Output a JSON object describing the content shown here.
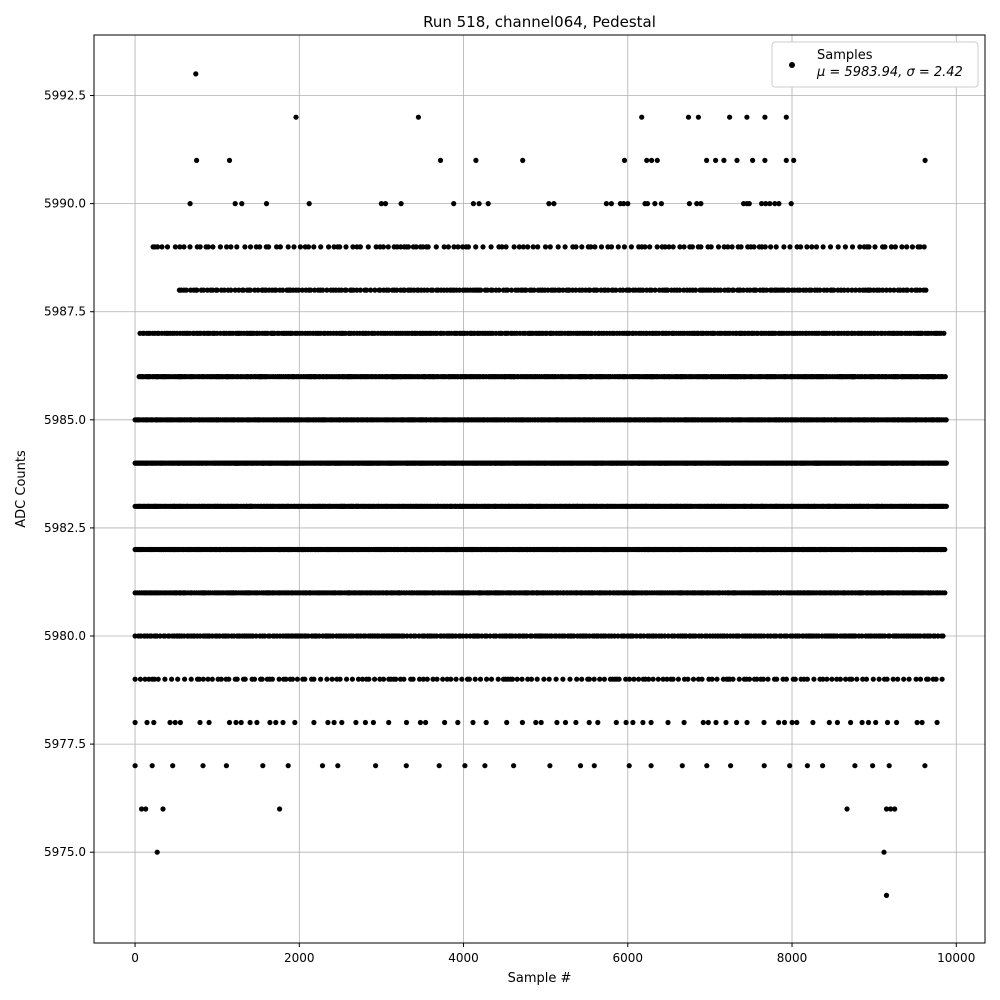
{
  "chart_data": {
    "type": "scatter",
    "title": "Run 518, channel064, Pedestal",
    "xlabel": "Sample #",
    "ylabel": "ADC Counts",
    "xlim": [
      -500,
      10350
    ],
    "ylim": [
      5972.9,
      5993.9
    ],
    "xticks": [
      0,
      2000,
      4000,
      6000,
      8000,
      10000
    ],
    "xtick_labels": [
      "0",
      "2000",
      "4000",
      "6000",
      "8000",
      "10000"
    ],
    "yticks": [
      5975.0,
      5977.5,
      5980.0,
      5982.5,
      5985.0,
      5987.5,
      5990.0,
      5992.5
    ],
    "ytick_labels": [
      "5975.0",
      "5977.5",
      "5980.0",
      "5982.5",
      "5985.0",
      "5987.5",
      "5990.0",
      "5992.5"
    ],
    "grid": true,
    "legend": {
      "position": "top-right",
      "label": "Samples",
      "stats_label": "μ = 5983.94, σ = 2.42"
    },
    "marker_color": "#000000",
    "series": [
      {
        "name": "Samples",
        "points": [
          [
            740,
            5993
          ],
          [
            1960,
            5992
          ],
          [
            3450,
            5992
          ],
          [
            6170,
            5992
          ],
          [
            6740,
            5992
          ],
          [
            6860,
            5992
          ],
          [
            7240,
            5992
          ],
          [
            7450,
            5992
          ],
          [
            7670,
            5992
          ],
          [
            7930,
            5992
          ],
          [
            750,
            5991
          ],
          [
            1150,
            5991
          ],
          [
            3720,
            5991
          ],
          [
            4150,
            5991
          ],
          [
            4720,
            5991
          ],
          [
            5960,
            5991
          ],
          [
            6230,
            5991
          ],
          [
            6290,
            5991
          ],
          [
            6360,
            5991
          ],
          [
            6960,
            5991
          ],
          [
            7070,
            5991
          ],
          [
            7170,
            5991
          ],
          [
            7330,
            5991
          ],
          [
            7520,
            5991
          ],
          [
            7670,
            5991
          ],
          [
            7930,
            5991
          ],
          [
            8020,
            5991
          ],
          [
            9620,
            5991
          ],
          [
            670,
            5990
          ],
          [
            1220,
            5990
          ],
          [
            1300,
            5990
          ],
          [
            1600,
            5990
          ],
          [
            2120,
            5990
          ],
          [
            3000,
            5990
          ],
          [
            3050,
            5990
          ],
          [
            3240,
            5990
          ],
          [
            3880,
            5990
          ],
          [
            4120,
            5990
          ],
          [
            4190,
            5990
          ],
          [
            4300,
            5990
          ],
          [
            5040,
            5990
          ],
          [
            5100,
            5990
          ],
          [
            5740,
            5990
          ],
          [
            5800,
            5990
          ],
          [
            5910,
            5990
          ],
          [
            5950,
            5990
          ],
          [
            6000,
            5990
          ],
          [
            6210,
            5990
          ],
          [
            6240,
            5990
          ],
          [
            6330,
            5990
          ],
          [
            6410,
            5990
          ],
          [
            6750,
            5990
          ],
          [
            6840,
            5990
          ],
          [
            6890,
            5990
          ],
          [
            7410,
            5990
          ],
          [
            7450,
            5990
          ],
          [
            7480,
            5990
          ],
          [
            7630,
            5990
          ],
          [
            7680,
            5990
          ],
          [
            7730,
            5990
          ],
          [
            7790,
            5990
          ],
          [
            7840,
            5990
          ],
          [
            7990,
            5990
          ]
        ],
        "bands": [
          {
            "y": 5989,
            "x_start": 220,
            "x_end": 9650,
            "step": 55
          },
          {
            "y": 5988,
            "x_start": 540,
            "x_end": 9640,
            "step": 30
          },
          {
            "y": 5987,
            "x_start": 60,
            "x_end": 9860,
            "step": 22
          },
          {
            "y": 5986,
            "x_start": 50,
            "x_end": 9880,
            "step": 18
          },
          {
            "y": 5985,
            "x_start": 0,
            "x_end": 9880,
            "step": 14
          },
          {
            "y": 5984,
            "x_start": 0,
            "x_end": 9880,
            "step": 12
          },
          {
            "y": 5983,
            "x_start": 0,
            "x_end": 9880,
            "step": 12
          },
          {
            "y": 5982,
            "x_start": 0,
            "x_end": 9880,
            "step": 14
          },
          {
            "y": 5981,
            "x_start": 0,
            "x_end": 9880,
            "step": 18
          },
          {
            "y": 5980,
            "x_start": 0,
            "x_end": 9860,
            "step": 26
          },
          {
            "y": 5979,
            "x_start": 0,
            "x_end": 9860,
            "step": 48
          },
          {
            "y": 5978,
            "x_start": 0,
            "x_end": 9840,
            "step": 140
          },
          {
            "y": 5977,
            "x_start": 0,
            "x_end": 9730,
            "step": 260
          }
        ],
        "sparse_points": [
          [
            80,
            5976
          ],
          [
            130,
            5976
          ],
          [
            340,
            5976
          ],
          [
            1760,
            5976
          ],
          [
            8670,
            5976
          ],
          [
            9150,
            5976
          ],
          [
            9200,
            5976
          ],
          [
            9250,
            5976
          ],
          [
            270,
            5975
          ],
          [
            9120,
            5975
          ],
          [
            9150,
            5974
          ]
        ]
      }
    ]
  }
}
